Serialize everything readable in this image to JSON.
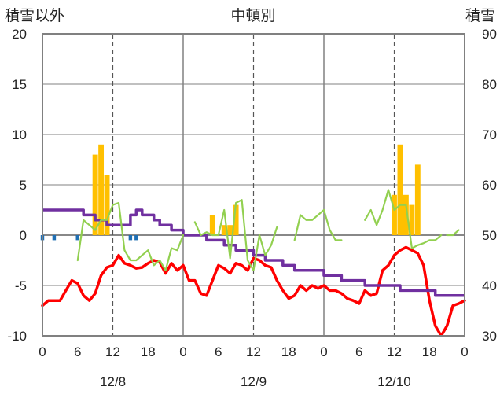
{
  "chart_data": {
    "type": "line",
    "title": "中頓別",
    "y_left_label": "積雪以外",
    "y_right_label": "積雪",
    "x_range_hours": [
      0,
      72
    ],
    "x_tick_labels": [
      "0",
      "6",
      "12",
      "18",
      "0",
      "6",
      "12",
      "18",
      "0",
      "6",
      "12",
      "18",
      "0"
    ],
    "date_labels": [
      "12/8",
      "12/9",
      "12/10"
    ],
    "y_left_range": [
      -10,
      20
    ],
    "y_left_ticks": [
      "20",
      "15",
      "10",
      "5",
      "0",
      "-5",
      "-10"
    ],
    "y_right_range": [
      30,
      90
    ],
    "y_right_ticks": [
      "90",
      "80",
      "70",
      "60",
      "50",
      "40",
      "30"
    ],
    "colors": {
      "temperature": "#ff0000",
      "snow_depth": "#7030a0",
      "wind": "#92d050",
      "snowfall": "#ffc000",
      "precipitation": "#1f6fb4",
      "grid": "#808080",
      "frame": "#808080"
    },
    "series": [
      {
        "key": "temperature",
        "axis": "left",
        "style": "line",
        "x": [
          0,
          1,
          2,
          3,
          4,
          5,
          6,
          7,
          8,
          9,
          10,
          11,
          12,
          13,
          14,
          15,
          16,
          17,
          18,
          19,
          20,
          21,
          22,
          23,
          24,
          25,
          26,
          27,
          28,
          29,
          30,
          31,
          32,
          33,
          34,
          35,
          36,
          37,
          38,
          39,
          40,
          41,
          42,
          43,
          44,
          45,
          46,
          47,
          48,
          49,
          50,
          51,
          52,
          53,
          54,
          55,
          56,
          57,
          58,
          59,
          60,
          61,
          62,
          63,
          64,
          65,
          66,
          67,
          68,
          69,
          70,
          71,
          72
        ],
        "values": [
          -7.0,
          -6.5,
          -6.5,
          -6.5,
          -5.5,
          -4.5,
          -4.8,
          -6.0,
          -6.5,
          -5.8,
          -4.0,
          -3.2,
          -3.0,
          -2.0,
          -2.8,
          -3.0,
          -3.3,
          -3.2,
          -2.8,
          -2.5,
          -2.7,
          -3.8,
          -2.8,
          -3.5,
          -3.0,
          -4.5,
          -4.5,
          -5.8,
          -6.0,
          -4.5,
          -3.0,
          -3.3,
          -3.8,
          -2.8,
          -3.0,
          -3.5,
          -2.3,
          -2.5,
          -3.0,
          -3.2,
          -4.5,
          -5.5,
          -6.3,
          -6.0,
          -5.0,
          -5.5,
          -5.0,
          -5.3,
          -5.0,
          -5.5,
          -5.5,
          -5.8,
          -6.3,
          -6.5,
          -6.8,
          -5.5,
          -6.0,
          -5.8,
          -3.5,
          -3.0,
          -2.0,
          -1.5,
          -1.2,
          -1.5,
          -1.8,
          -3.0,
          -6.5,
          -9.0,
          -10.0,
          -9.0,
          -7.0,
          -6.8,
          -6.5
        ]
      },
      {
        "key": "snow_depth",
        "axis": "right",
        "style": "step",
        "x": [
          0,
          1,
          2,
          3,
          4,
          5,
          6,
          7,
          8,
          9,
          10,
          11,
          12,
          13,
          14,
          15,
          16,
          17,
          18,
          19,
          20,
          21,
          22,
          23,
          24,
          25,
          26,
          27,
          28,
          29,
          30,
          31,
          32,
          33,
          34,
          35,
          36,
          37,
          38,
          39,
          40,
          41,
          42,
          43,
          44,
          45,
          46,
          47,
          48,
          49,
          50,
          51,
          52,
          53,
          54,
          55,
          56,
          57,
          58,
          59,
          60,
          61,
          62,
          63,
          64,
          65,
          66,
          67,
          68,
          69,
          70,
          71
        ],
        "values": [
          55,
          55,
          55,
          55,
          55,
          55,
          55,
          54,
          54,
          53,
          53,
          52,
          52,
          52,
          52,
          54,
          55,
          54,
          54,
          53,
          52,
          52,
          51,
          51,
          50,
          50,
          50,
          50,
          49,
          49,
          49,
          48,
          48,
          47,
          47,
          47,
          46,
          46,
          45,
          45,
          45,
          44,
          44,
          43,
          43,
          43,
          43,
          43,
          42,
          42,
          42,
          41,
          41,
          41,
          41,
          40,
          40,
          40,
          40,
          40,
          40,
          39,
          39,
          39,
          39,
          39,
          39,
          38,
          38,
          38,
          38,
          38
        ]
      },
      {
        "key": "wind",
        "axis": "left",
        "style": "line",
        "segments": [
          {
            "x": [
              6,
              7,
              8,
              9,
              10,
              11,
              12,
              13,
              14,
              15,
              16,
              17,
              18,
              19,
              20,
              21,
              22,
              23,
              24
            ],
            "values": [
              -2.5,
              1.5,
              1.0,
              0.5,
              1.5,
              1.5,
              3.0,
              3.2,
              -1.5,
              -2.5,
              -2.5,
              -2.0,
              -1.5,
              -3.0,
              -2.5,
              -3.5,
              -1.3,
              -1.5,
              0.0
            ]
          },
          {
            "x": [
              26,
              27,
              28,
              29,
              30,
              31,
              32,
              33,
              34,
              35,
              36,
              37,
              38,
              39,
              40
            ],
            "values": [
              1.3,
              0.0,
              0.3,
              0.0,
              0.0,
              2.5,
              -2.3,
              3.2,
              3.5,
              -2.5,
              -3.5,
              0.0,
              -2.0,
              -1.0,
              0.8
            ]
          },
          {
            "x": [
              43,
              44,
              45,
              46,
              47,
              48,
              49,
              50,
              51
            ],
            "values": [
              -0.5,
              2.0,
              1.5,
              1.5,
              2.0,
              2.5,
              0.5,
              -0.5,
              -0.5
            ]
          },
          {
            "x": [
              55,
              56,
              57,
              58,
              59,
              60,
              61,
              62,
              63,
              64,
              65,
              66,
              67,
              68
            ],
            "values": [
              1.5,
              2.5,
              1.0,
              2.5,
              4.5,
              2.5,
              3.0,
              3.0,
              -1.3,
              -1.0,
              -0.8,
              -0.5,
              -0.5,
              0.0
            ]
          },
          {
            "x": [
              69,
              70,
              71
            ],
            "values": [
              0.0,
              0.0,
              0.5
            ]
          }
        ]
      },
      {
        "key": "snowfall",
        "axis": "left",
        "style": "bar",
        "bar_hours": [
          9,
          10,
          11,
          13,
          14,
          15,
          16,
          17,
          18,
          19,
          20,
          21,
          22,
          23,
          24,
          25,
          26,
          27,
          28,
          29,
          30,
          31,
          32,
          33,
          34,
          35,
          36,
          37,
          38,
          39,
          40,
          41,
          42,
          43,
          44,
          45,
          46,
          47,
          48,
          49,
          50,
          51,
          52,
          53,
          54,
          55,
          56,
          57,
          58,
          59,
          60,
          61,
          62,
          63,
          64,
          65,
          66,
          67,
          68,
          69,
          70,
          71
        ],
        "bars": [
          {
            "x": 9,
            "value": 8.0
          },
          {
            "x": 10,
            "value": 9.0
          },
          {
            "x": 11,
            "value": 6.0
          },
          {
            "x": 29,
            "value": 2.0
          },
          {
            "x": 31,
            "value": 1.0
          },
          {
            "x": 32,
            "value": 1.0
          },
          {
            "x": 33,
            "value": 3.0
          },
          {
            "x": 60,
            "value": 4.0
          },
          {
            "x": 61,
            "value": 9.0
          },
          {
            "x": 62,
            "value": 4.0
          },
          {
            "x": 63,
            "value": 3.0
          },
          {
            "x": 64,
            "value": 7.0
          }
        ]
      },
      {
        "key": "precipitation",
        "axis": "left",
        "style": "bar",
        "bars": [
          {
            "x": 0,
            "value": -0.5
          },
          {
            "x": 2,
            "value": -0.5
          },
          {
            "x": 6,
            "value": -0.5
          },
          {
            "x": 15,
            "value": -0.5
          },
          {
            "x": 16,
            "value": -0.5
          }
        ]
      }
    ]
  }
}
